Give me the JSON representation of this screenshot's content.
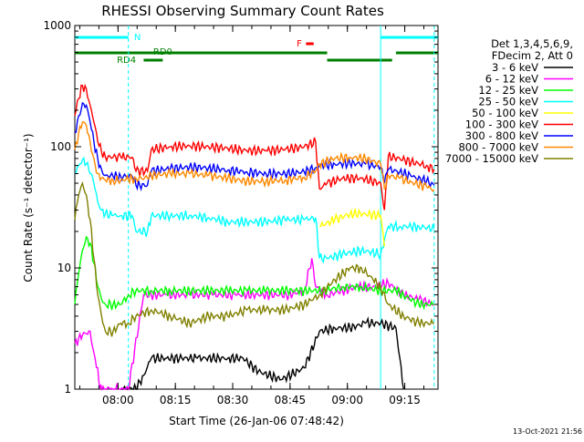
{
  "chart_data": {
    "type": "line",
    "title": "RHESSI Observing Summary Count Rates",
    "xlabel": "Start Time (26-Jan-06 07:48:42)",
    "ylabel": "Count Rate (s⁻¹ detector⁻¹)",
    "y_scale": "log",
    "ylim": [
      1,
      1000
    ],
    "xlim_minutes": [
      0,
      95
    ],
    "y_ticks": [
      {
        "value": 1,
        "label": "1"
      },
      {
        "value": 10,
        "label": "10"
      },
      {
        "value": 100,
        "label": "100"
      },
      {
        "value": 1000,
        "label": "1000"
      }
    ],
    "x_ticks": [
      {
        "value": 11.3,
        "label": "08:00"
      },
      {
        "value": 26.3,
        "label": "08:15"
      },
      {
        "value": 41.3,
        "label": "08:30"
      },
      {
        "value": 56.3,
        "label": "08:45"
      },
      {
        "value": 71.3,
        "label": "09:00"
      },
      {
        "value": 86.3,
        "label": "09:15"
      }
    ],
    "legend": {
      "placement": "right",
      "header": [
        "Det 1,3,4,5,6,9,",
        "FDecim 2, Att 0"
      ]
    },
    "series": [
      {
        "name": "3 - 6 keV",
        "color": "#000000",
        "points": [
          [
            12,
            1
          ],
          [
            14,
            1
          ],
          [
            16,
            1
          ],
          [
            18,
            1.3
          ],
          [
            20,
            1.8
          ],
          [
            24,
            1.8
          ],
          [
            28,
            1.8
          ],
          [
            32,
            1.8
          ],
          [
            36,
            1.8
          ],
          [
            40,
            1.8
          ],
          [
            44,
            1.8
          ],
          [
            48,
            1.4
          ],
          [
            54,
            1.2
          ],
          [
            60,
            1.5
          ],
          [
            64,
            3.0
          ],
          [
            68,
            3.2
          ],
          [
            72,
            3.2
          ],
          [
            76,
            3.5
          ],
          [
            80,
            3.5
          ],
          [
            84,
            3.2
          ],
          [
            86,
            1.0
          ]
        ]
      },
      {
        "name": "6 - 12 keV",
        "color": "#ff00ff",
        "points": [
          [
            0,
            2.4
          ],
          [
            2,
            2.8
          ],
          [
            4,
            3.0
          ],
          [
            5,
            2.0
          ],
          [
            6,
            1.5
          ],
          [
            6.5,
            1.0
          ],
          [
            8,
            1.0
          ],
          [
            10,
            1.0
          ],
          [
            12,
            1.0
          ],
          [
            14,
            1.0
          ],
          [
            18,
            6
          ],
          [
            24,
            6
          ],
          [
            30,
            6
          ],
          [
            36,
            6
          ],
          [
            42,
            6
          ],
          [
            48,
            6
          ],
          [
            56,
            6
          ],
          [
            60,
            6.5
          ],
          [
            62,
            12
          ],
          [
            63,
            7
          ],
          [
            66,
            6
          ],
          [
            70,
            6.5
          ],
          [
            74,
            7
          ],
          [
            78,
            7
          ],
          [
            82,
            7.5
          ],
          [
            86,
            6
          ],
          [
            90,
            5.5
          ],
          [
            94,
            5
          ]
        ]
      },
      {
        "name": "12 - 25 keV",
        "color": "#00ff00",
        "points": [
          [
            0,
            5
          ],
          [
            1,
            9
          ],
          [
            2,
            14
          ],
          [
            3,
            18
          ],
          [
            4,
            16
          ],
          [
            5,
            11
          ],
          [
            6,
            7
          ],
          [
            7,
            5.5
          ],
          [
            8,
            5
          ],
          [
            10,
            5
          ],
          [
            12,
            5
          ],
          [
            14,
            6
          ],
          [
            16,
            6.5
          ],
          [
            20,
            6.5
          ],
          [
            25,
            6.5
          ],
          [
            30,
            6.5
          ],
          [
            35,
            6.5
          ],
          [
            40,
            6.5
          ],
          [
            45,
            6.5
          ],
          [
            50,
            6.5
          ],
          [
            55,
            6.5
          ],
          [
            60,
            6.5
          ],
          [
            65,
            6.5
          ],
          [
            70,
            7
          ],
          [
            75,
            7
          ],
          [
            80,
            6.5
          ],
          [
            84,
            6.5
          ],
          [
            86,
            6
          ],
          [
            90,
            5
          ],
          [
            94,
            5
          ]
        ]
      },
      {
        "name": "25 - 50 keV",
        "color": "#00ffff",
        "points": [
          [
            0,
            60
          ],
          [
            1,
            70
          ],
          [
            2,
            78
          ],
          [
            3,
            72
          ],
          [
            4,
            60
          ],
          [
            5,
            50
          ],
          [
            6,
            35
          ],
          [
            7,
            30
          ],
          [
            8,
            28
          ],
          [
            10,
            27
          ],
          [
            12,
            27
          ],
          [
            15,
            27
          ],
          [
            16,
            20
          ],
          [
            19,
            20
          ],
          [
            20,
            27
          ],
          [
            25,
            27
          ],
          [
            30,
            27
          ],
          [
            35,
            26
          ],
          [
            40,
            24
          ],
          [
            45,
            24
          ],
          [
            50,
            24
          ],
          [
            55,
            25
          ],
          [
            60,
            25
          ],
          [
            63,
            26
          ],
          [
            64,
            12
          ],
          [
            66,
            12
          ],
          [
            70,
            13
          ],
          [
            75,
            14
          ],
          [
            80,
            13
          ],
          [
            81,
            17
          ],
          [
            82,
            22
          ],
          [
            85,
            22
          ],
          [
            90,
            22
          ],
          [
            94,
            21
          ]
        ]
      },
      {
        "name": "50 - 100 keV",
        "color": "#ffff00",
        "points": [
          [
            64,
            22
          ],
          [
            68,
            25
          ],
          [
            72,
            28
          ],
          [
            76,
            28
          ],
          [
            80,
            27
          ],
          [
            81,
            15
          ]
        ]
      },
      {
        "name": "100 - 300 keV",
        "color": "#ff0000",
        "points": [
          [
            0,
            180
          ],
          [
            1,
            250
          ],
          [
            2,
            320
          ],
          [
            3,
            300
          ],
          [
            4,
            220
          ],
          [
            5,
            160
          ],
          [
            6,
            110
          ],
          [
            7,
            90
          ],
          [
            8,
            82
          ],
          [
            10,
            82
          ],
          [
            12,
            82
          ],
          [
            15,
            82
          ],
          [
            16,
            63
          ],
          [
            19,
            63
          ],
          [
            20,
            95
          ],
          [
            25,
            100
          ],
          [
            30,
            102
          ],
          [
            35,
            100
          ],
          [
            40,
            97
          ],
          [
            45,
            93
          ],
          [
            50,
            93
          ],
          [
            55,
            95
          ],
          [
            60,
            100
          ],
          [
            63,
            110
          ],
          [
            64,
            45
          ],
          [
            66,
            50
          ],
          [
            70,
            55
          ],
          [
            75,
            55
          ],
          [
            80,
            50
          ],
          [
            81,
            30
          ],
          [
            82,
            83
          ],
          [
            85,
            80
          ],
          [
            88,
            75
          ],
          [
            92,
            70
          ],
          [
            94,
            65
          ]
        ]
      },
      {
        "name": "300 - 800 keV",
        "color": "#0000ff",
        "points": [
          [
            0,
            130
          ],
          [
            1,
            180
          ],
          [
            2,
            230
          ],
          [
            3,
            220
          ],
          [
            4,
            160
          ],
          [
            5,
            110
          ],
          [
            6,
            80
          ],
          [
            7,
            65
          ],
          [
            8,
            58
          ],
          [
            10,
            57
          ],
          [
            12,
            57
          ],
          [
            15,
            57
          ],
          [
            16,
            48
          ],
          [
            19,
            48
          ],
          [
            20,
            63
          ],
          [
            25,
            66
          ],
          [
            30,
            68
          ],
          [
            35,
            67
          ],
          [
            40,
            64
          ],
          [
            45,
            62
          ],
          [
            50,
            60
          ],
          [
            55,
            60
          ],
          [
            60,
            62
          ],
          [
            63,
            67
          ],
          [
            64,
            70
          ],
          [
            68,
            72
          ],
          [
            72,
            73
          ],
          [
            76,
            72
          ],
          [
            80,
            68
          ],
          [
            81,
            50
          ],
          [
            82,
            65
          ],
          [
            85,
            62
          ],
          [
            88,
            57
          ],
          [
            92,
            52
          ],
          [
            94,
            48
          ]
        ]
      },
      {
        "name": "800 - 7000 keV",
        "color": "#ff8800",
        "points": [
          [
            0,
            95
          ],
          [
            1,
            130
          ],
          [
            2,
            160
          ],
          [
            3,
            150
          ],
          [
            4,
            110
          ],
          [
            5,
            80
          ],
          [
            6,
            60
          ],
          [
            7,
            55
          ],
          [
            8,
            53
          ],
          [
            10,
            53
          ],
          [
            12,
            53
          ],
          [
            15,
            55
          ],
          [
            16,
            55
          ],
          [
            19,
            55
          ],
          [
            20,
            58
          ],
          [
            25,
            60
          ],
          [
            30,
            60
          ],
          [
            35,
            58
          ],
          [
            40,
            55
          ],
          [
            45,
            52
          ],
          [
            50,
            52
          ],
          [
            55,
            53
          ],
          [
            60,
            56
          ],
          [
            63,
            63
          ],
          [
            64,
            72
          ],
          [
            68,
            80
          ],
          [
            72,
            82
          ],
          [
            76,
            80
          ],
          [
            80,
            72
          ],
          [
            81,
            45
          ],
          [
            82,
            58
          ],
          [
            85,
            55
          ],
          [
            88,
            51
          ],
          [
            92,
            47
          ],
          [
            94,
            44
          ]
        ]
      },
      {
        "name": "7000 - 15000 keV",
        "color": "#808000",
        "points": [
          [
            0,
            25
          ],
          [
            1,
            40
          ],
          [
            2,
            50
          ],
          [
            3,
            40
          ],
          [
            4,
            25
          ],
          [
            5,
            12
          ],
          [
            6,
            6
          ],
          [
            7,
            4
          ],
          [
            8,
            3
          ],
          [
            10,
            3
          ],
          [
            12,
            3.5
          ],
          [
            14,
            3.5
          ],
          [
            16,
            4
          ],
          [
            20,
            4.5
          ],
          [
            25,
            4
          ],
          [
            30,
            3.5
          ],
          [
            35,
            4
          ],
          [
            40,
            4
          ],
          [
            45,
            4.5
          ],
          [
            50,
            4.5
          ],
          [
            55,
            4.5
          ],
          [
            60,
            5
          ],
          [
            64,
            6
          ],
          [
            68,
            8
          ],
          [
            72,
            10
          ],
          [
            75,
            10
          ],
          [
            78,
            8
          ],
          [
            80,
            7
          ],
          [
            82,
            5
          ],
          [
            86,
            4
          ],
          [
            90,
            3.5
          ],
          [
            94,
            3.5
          ]
        ]
      }
    ],
    "markers": [
      {
        "label": "N",
        "color": "#00ffff"
      },
      {
        "label": "F",
        "color": "#ff0000"
      },
      {
        "label": "RD0",
        "color": "#008000"
      },
      {
        "label": "RD4",
        "color": "#008000"
      }
    ],
    "marker_bars": {
      "N": [
        [
          0,
          14
        ],
        [
          80,
          95
        ]
      ],
      "F": [
        [
          60,
          62
        ]
      ],
      "green_high": [
        [
          0,
          66
        ],
        [
          84,
          95
        ]
      ],
      "green_low": [
        [
          66,
          83
        ]
      ],
      "rd4": [
        [
          18,
          23
        ]
      ]
    },
    "vertical_lines_minutes": [
      {
        "x": 14,
        "style": "dashed"
      },
      {
        "x": 80,
        "style": "solid"
      },
      {
        "x": 94,
        "style": "dashed"
      }
    ],
    "footer": "13-Oct-2021 21:56"
  }
}
